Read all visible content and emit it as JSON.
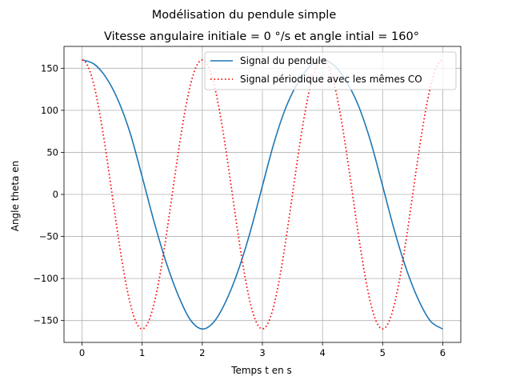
{
  "chart_data": {
    "type": "line",
    "suptitle": "Modélisation du pendule simple",
    "title": "Vitesse angulaire initiale = 0 °/s et angle intial = 160°",
    "xlabel": "Temps t en s",
    "ylabel": "Angle theta en",
    "xlim": [
      -0.3,
      6.3
    ],
    "ylim": [
      -176,
      176
    ],
    "xticks": [
      0,
      1,
      2,
      3,
      4,
      5,
      6
    ],
    "xtick_labels": [
      "0",
      "1",
      "2",
      "3",
      "4",
      "5",
      "6"
    ],
    "yticks": [
      -150,
      -100,
      -50,
      0,
      50,
      100,
      150
    ],
    "ytick_labels": [
      "−150",
      "−100",
      "−50",
      "0",
      "50",
      "100",
      "150"
    ],
    "grid": true,
    "legend_position": "top-right",
    "series": [
      {
        "name": "Signal du pendule",
        "color": "#1f77b4",
        "style": "solid",
        "x": [
          0,
          0.2,
          0.4,
          0.6,
          0.8,
          1.0,
          1.2,
          1.4,
          1.6,
          1.8,
          2.0,
          2.2,
          2.4,
          2.6,
          2.8,
          3.0,
          3.2,
          3.4,
          3.6,
          3.8,
          4.0,
          4.2,
          4.4,
          4.6,
          4.8,
          5.0,
          5.2,
          5.4,
          5.6,
          5.8,
          6.0
        ],
        "y": [
          160,
          155,
          139,
          112,
          73,
          21,
          -33,
          -81,
          -120,
          -149,
          -160,
          -151,
          -126,
          -90,
          -44,
          10,
          63,
          105,
          134,
          153,
          160,
          153,
          134,
          105,
          63,
          10,
          -44,
          -90,
          -126,
          -151,
          -160
        ]
      },
      {
        "name": "Signal périodique avec les mêmes CO",
        "color": "#ff0000",
        "style": "dotted",
        "period": 2,
        "amplitude": 160,
        "x_range": [
          0,
          6
        ]
      }
    ]
  }
}
